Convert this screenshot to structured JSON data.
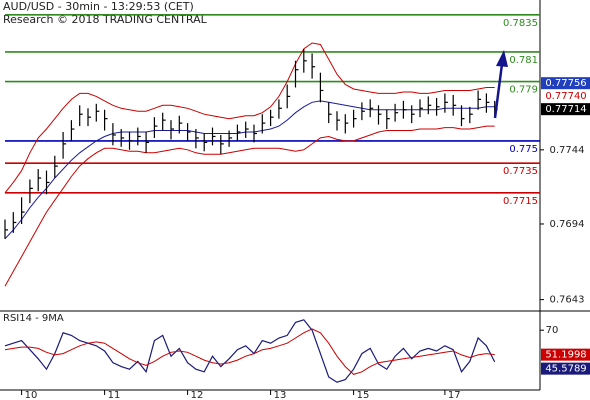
{
  "chart_data": [
    {
      "type": "ohlc",
      "title": "AUD/USD - 30min - 13:29:53 (CET)",
      "subtitle": "Research © 2018 TRADING CENTRAL",
      "categories": [
        null,
        null,
        "10",
        null,
        null,
        null,
        null,
        null,
        null,
        null,
        null,
        null,
        "11",
        null,
        null,
        null,
        null,
        null,
        null,
        null,
        null,
        null,
        "12",
        null,
        null,
        null,
        null,
        null,
        null,
        null,
        null,
        null,
        "13",
        null,
        null,
        null,
        null,
        null,
        null,
        null,
        null,
        null,
        "15",
        null,
        null,
        null,
        null,
        null,
        null,
        null,
        null,
        null,
        null,
        "17",
        null,
        null,
        null,
        null,
        null,
        null
      ],
      "high": [
        0.7697,
        0.7702,
        0.7712,
        0.7724,
        0.7731,
        0.773,
        0.774,
        0.7756,
        0.7764,
        0.7774,
        0.7772,
        0.7775,
        0.7771,
        0.7762,
        0.7758,
        0.7756,
        0.7759,
        0.7756,
        0.7766,
        0.7769,
        0.7764,
        0.7767,
        0.7762,
        0.7758,
        0.7755,
        0.7759,
        0.7754,
        0.7757,
        0.7761,
        0.7763,
        0.7761,
        0.7768,
        0.7771,
        0.7778,
        0.7788,
        0.7804,
        0.7812,
        0.7809,
        0.7796,
        0.7776,
        0.777,
        0.7768,
        0.7771,
        0.7776,
        0.7778,
        0.7774,
        0.7771,
        0.7775,
        0.7777,
        0.7774,
        0.7778,
        0.778,
        0.7779,
        0.7782,
        0.7781,
        0.7774,
        0.7773,
        0.7784,
        0.7782,
        0.7777
      ],
      "low": [
        0.7684,
        0.7688,
        0.7694,
        0.7708,
        0.7716,
        0.7714,
        0.7725,
        0.7738,
        0.775,
        0.776,
        0.776,
        0.7763,
        0.7757,
        0.7747,
        0.7746,
        0.7744,
        0.7747,
        0.7742,
        0.7752,
        0.7757,
        0.7751,
        0.7755,
        0.775,
        0.7745,
        0.7743,
        0.7747,
        0.7741,
        0.7746,
        0.775,
        0.7752,
        0.7749,
        0.7755,
        0.776,
        0.7765,
        0.7772,
        0.7786,
        0.7796,
        0.7792,
        0.7776,
        0.7762,
        0.7757,
        0.7755,
        0.7759,
        0.7764,
        0.7766,
        0.7761,
        0.7758,
        0.7763,
        0.7765,
        0.7762,
        0.7766,
        0.7768,
        0.7767,
        0.7769,
        0.7767,
        0.776,
        0.7762,
        0.7771,
        0.7769,
        0.7766
      ],
      "close": [
        0.769,
        0.7695,
        0.7702,
        0.7718,
        0.7725,
        0.7722,
        0.7733,
        0.7748,
        0.7758,
        0.7768,
        0.7766,
        0.777,
        0.7765,
        0.7754,
        0.7752,
        0.775,
        0.7753,
        0.7749,
        0.776,
        0.7764,
        0.7758,
        0.7762,
        0.7756,
        0.7752,
        0.7749,
        0.7753,
        0.7748,
        0.7752,
        0.7756,
        0.7758,
        0.7755,
        0.7762,
        0.7766,
        0.7772,
        0.778,
        0.7798,
        0.7804,
        0.78,
        0.7784,
        0.7768,
        0.7764,
        0.7762,
        0.7765,
        0.777,
        0.7772,
        0.7768,
        0.7765,
        0.7769,
        0.7771,
        0.7768,
        0.7772,
        0.7774,
        0.7773,
        0.7776,
        0.7774,
        0.7765,
        0.7768,
        0.7778,
        0.7776,
        0.77714
      ],
      "bar_color": "#000000",
      "overlays": [
        {
          "color": "#cc0000",
          "values": [
            0.7715,
            0.7722,
            0.773,
            0.7742,
            0.7752,
            0.7758,
            0.7765,
            0.7772,
            0.7778,
            0.7782,
            0.7782,
            0.778,
            0.7777,
            0.7774,
            0.7772,
            0.7771,
            0.777,
            0.777,
            0.7772,
            0.7774,
            0.7774,
            0.7773,
            0.7772,
            0.777,
            0.7768,
            0.7767,
            0.7766,
            0.7765,
            0.7766,
            0.7767,
            0.7767,
            0.7769,
            0.7773,
            0.778,
            0.779,
            0.7802,
            0.7812,
            0.7816,
            0.7815,
            0.7805,
            0.7795,
            0.7788,
            0.7785,
            0.7784,
            0.7783,
            0.7782,
            0.7782,
            0.7782,
            0.7783,
            0.7783,
            0.7782,
            0.7782,
            0.7783,
            0.7784,
            0.7784,
            0.7784,
            0.7784,
            0.7785,
            0.7786,
            0.7786
          ]
        },
        {
          "color": "#cc0000",
          "values": [
            0.7652,
            0.7662,
            0.7672,
            0.7682,
            0.7692,
            0.7702,
            0.771,
            0.7718,
            0.7726,
            0.7733,
            0.7738,
            0.7742,
            0.7745,
            0.7745,
            0.7744,
            0.7743,
            0.7743,
            0.7742,
            0.7742,
            0.7743,
            0.7744,
            0.7745,
            0.7744,
            0.7742,
            0.7741,
            0.7741,
            0.7741,
            0.7742,
            0.7743,
            0.7744,
            0.7745,
            0.7745,
            0.7745,
            0.7745,
            0.7744,
            0.7743,
            0.7744,
            0.7748,
            0.7752,
            0.7753,
            0.7751,
            0.775,
            0.775,
            0.7752,
            0.7754,
            0.7756,
            0.7757,
            0.7757,
            0.7757,
            0.7757,
            0.7758,
            0.7758,
            0.7758,
            0.7759,
            0.7759,
            0.7758,
            0.7758,
            0.7759,
            0.776,
            0.776
          ]
        },
        {
          "color": "#1a1aa0",
          "values": [
            0.7684,
            0.769,
            0.7697,
            0.7705,
            0.7712,
            0.7718,
            0.7725,
            0.7731,
            0.7737,
            0.7742,
            0.7746,
            0.775,
            0.7753,
            0.7755,
            0.7756,
            0.7756,
            0.7756,
            0.7756,
            0.7757,
            0.7757,
            0.7757,
            0.7757,
            0.7757,
            0.7756,
            0.7755,
            0.7755,
            0.7755,
            0.7755,
            0.7755,
            0.7756,
            0.7756,
            0.7757,
            0.7758,
            0.776,
            0.7764,
            0.7769,
            0.7773,
            0.7776,
            0.7777,
            0.7776,
            0.7775,
            0.7774,
            0.7773,
            0.7772,
            0.7771,
            0.7771,
            0.7771,
            0.7771,
            0.7771,
            0.7771,
            0.7771,
            0.7771,
            0.7771,
            0.7772,
            0.7772,
            0.7772,
            0.7772,
            0.7772,
            0.7773,
            0.7773
          ]
        }
      ],
      "levels": [
        {
          "value": 0.7835,
          "color": "#2e8b1e"
        },
        {
          "value": 0.781,
          "color": "#2e8b1e"
        },
        {
          "value": 0.779,
          "color": "#2e8b1e"
        },
        {
          "value": 0.775,
          "color": "#0000bb"
        },
        {
          "value": 0.7735,
          "color": "#cc0000"
        },
        {
          "value": 0.7715,
          "color": "#cc0000"
        }
      ],
      "price_labels": [
        {
          "value": 0.77756,
          "label": "0.77756",
          "color": "#ffffff",
          "background": "#1f3fbf"
        },
        {
          "value": 0.7774,
          "label": "0.77740",
          "color": "#cc0000"
        },
        {
          "value": 0.77714,
          "label": "0.77714",
          "color": "#ffffff",
          "background": "#000000"
        }
      ],
      "ylim": [
        0.7636,
        0.7845
      ],
      "yticks": [
        0.7744,
        0.7694,
        0.7643
      ]
    },
    {
      "type": "line",
      "title": "RSI14 - 9MA",
      "series": [
        {
          "color": "#1a1a7a",
          "values": [
            58,
            60,
            62,
            55,
            48,
            40,
            52,
            68,
            66,
            62,
            60,
            58,
            54,
            45,
            42,
            40,
            46,
            38,
            62,
            66,
            50,
            56,
            45,
            40,
            38,
            50,
            42,
            48,
            55,
            58,
            52,
            62,
            60,
            64,
            66,
            76,
            78,
            70,
            52,
            34,
            30,
            32,
            40,
            52,
            56,
            44,
            40,
            50,
            56,
            48,
            54,
            56,
            54,
            58,
            55,
            38,
            46,
            64,
            58,
            45.5789
          ]
        },
        {
          "color": "#cc0000",
          "values": [
            55,
            56,
            57,
            57,
            56,
            53,
            51,
            52,
            55,
            58,
            60,
            61,
            60,
            56,
            52,
            48,
            45,
            43,
            46,
            50,
            53,
            54,
            53,
            50,
            47,
            45,
            44,
            45,
            47,
            50,
            52,
            55,
            56,
            58,
            60,
            64,
            68,
            71,
            68,
            60,
            50,
            42,
            36,
            38,
            42,
            45,
            46,
            47,
            48,
            49,
            50,
            51,
            52,
            53,
            54,
            51,
            49,
            51,
            52,
            51.1998
          ]
        }
      ],
      "ylim": [
        24,
        84
      ],
      "yticks": [
        70
      ]
    }
  ]
}
